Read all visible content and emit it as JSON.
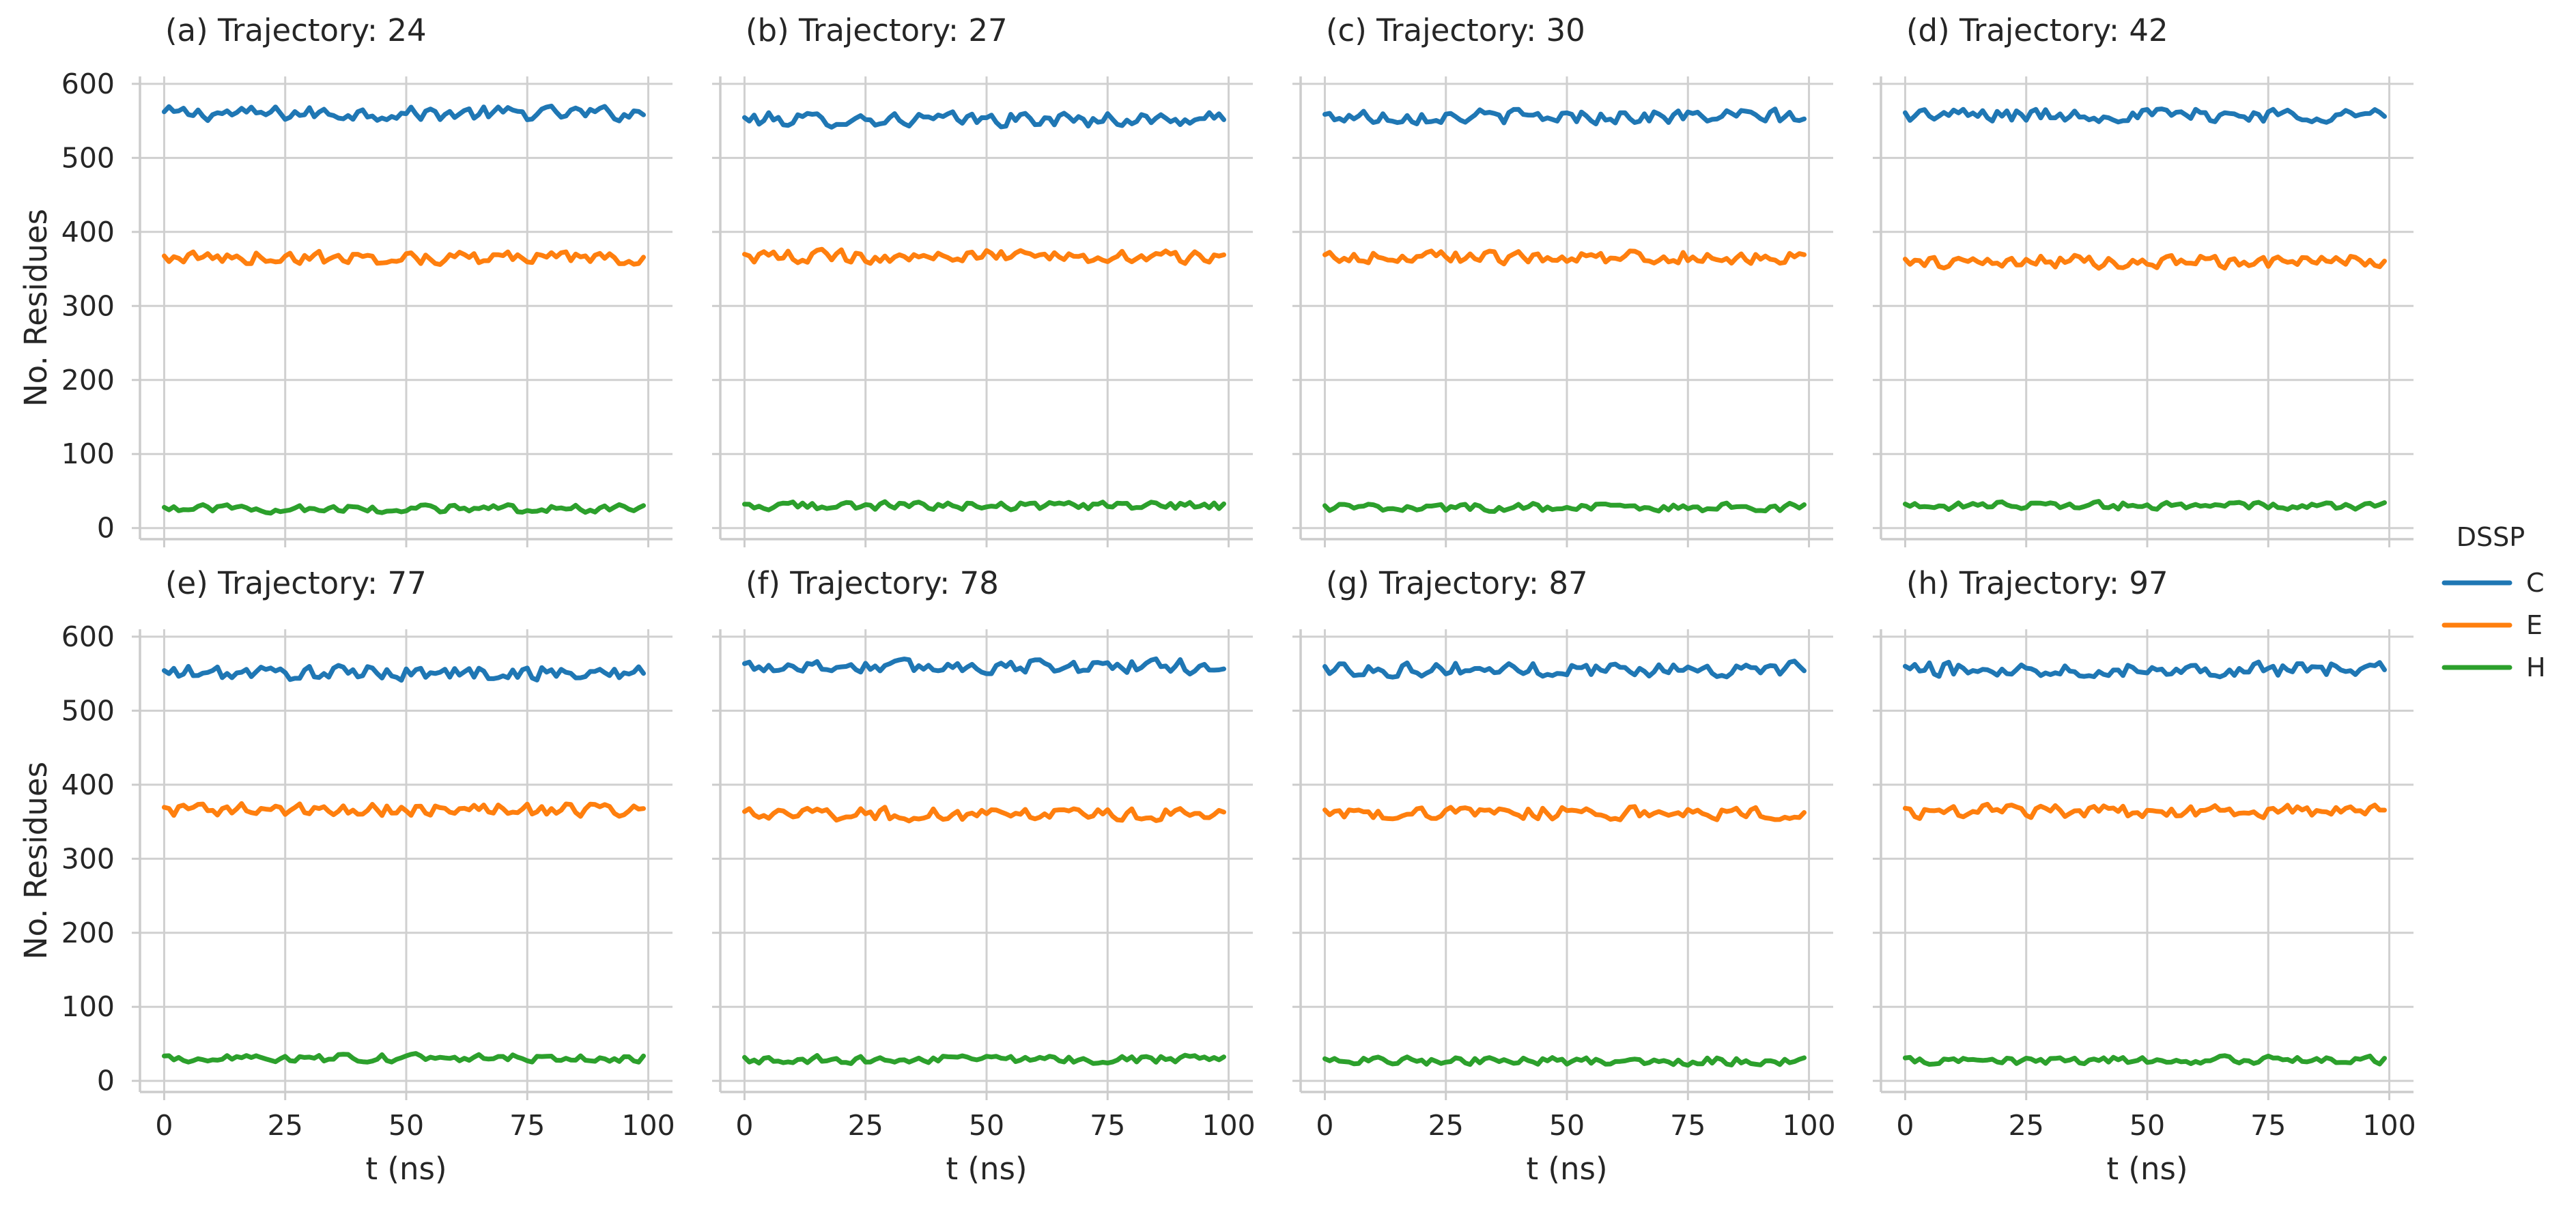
{
  "chart_data": {
    "type": "line",
    "layout": {
      "rows": 2,
      "cols": 4,
      "sharex": true,
      "sharey": true
    },
    "xlabel": "t (ns)",
    "ylabel": "No. Residues",
    "xlim": [
      -5,
      105
    ],
    "ylim": [
      -15,
      610
    ],
    "xticks": [
      0,
      25,
      50,
      75,
      100
    ],
    "yticks": [
      0,
      100,
      200,
      300,
      400,
      500,
      600
    ],
    "grid": true,
    "legend": {
      "title": "DSSP",
      "placement": "right-center",
      "entries": [
        {
          "label": "C",
          "color": "#1f77b4"
        },
        {
          "label": "E",
          "color": "#ff7f0e"
        },
        {
          "label": "H",
          "color": "#2ca02c"
        }
      ]
    },
    "series_style": {
      "C": {
        "color": "#1f77b4",
        "mean": 558,
        "amplitude": 9
      },
      "E": {
        "color": "#ff7f0e",
        "mean": 364,
        "amplitude": 8
      },
      "H": {
        "color": "#2ca02c",
        "mean": 28,
        "amplitude": 5
      }
    },
    "t_range": [
      0,
      99
    ],
    "n_points": 100,
    "panels": [
      {
        "title": "(a) Trajectory: 24",
        "means": {
          "C": 560,
          "E": 365,
          "H": 26
        }
      },
      {
        "title": "(b) Trajectory: 27",
        "means": {
          "C": 552,
          "E": 367,
          "H": 30
        }
      },
      {
        "title": "(c) Trajectory: 30",
        "means": {
          "C": 556,
          "E": 366,
          "H": 28
        }
      },
      {
        "title": "(d) Trajectory: 42",
        "means": {
          "C": 558,
          "E": 360,
          "H": 30
        }
      },
      {
        "title": "(e) Trajectory: 77",
        "means": {
          "C": 551,
          "E": 366,
          "H": 31
        }
      },
      {
        "title": "(f) Trajectory: 78",
        "means": {
          "C": 560,
          "E": 360,
          "H": 29
        }
      },
      {
        "title": "(g) Trajectory: 87",
        "means": {
          "C": 556,
          "E": 362,
          "H": 27
        }
      },
      {
        "title": "(h) Trajectory: 97",
        "means": {
          "C": 556,
          "E": 364,
          "H": 28
        }
      }
    ]
  }
}
